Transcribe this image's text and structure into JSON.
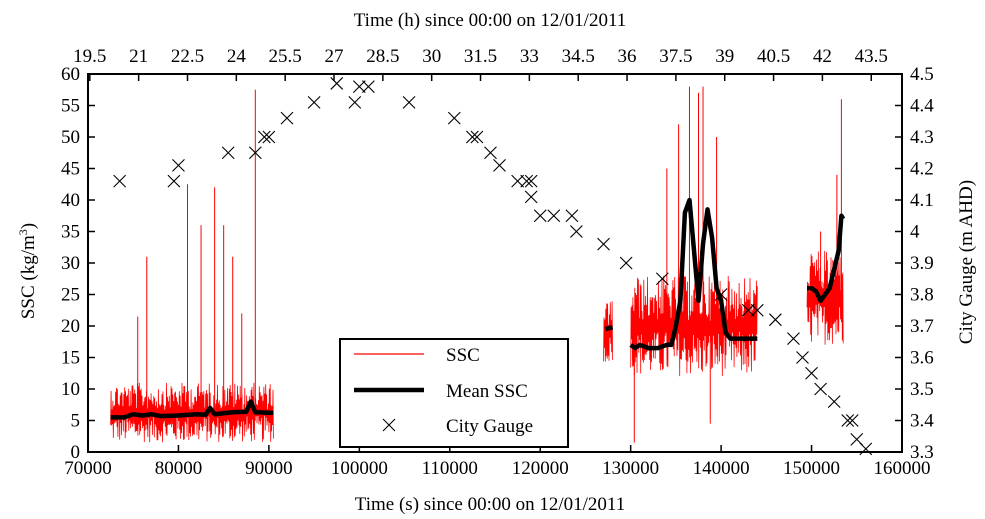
{
  "chart_data": {
    "type": "line",
    "title": "",
    "x_bottom": {
      "label": "Time (s) since 00:00 on 12/01/2011",
      "range": [
        70000,
        160000
      ],
      "ticks": [
        70000,
        80000,
        90000,
        100000,
        110000,
        120000,
        130000,
        140000,
        150000,
        160000
      ]
    },
    "x_top": {
      "label": "Time (h) since 00:00 on 12/01/2011",
      "ticks": [
        "19.5",
        "21",
        "22.5",
        "24",
        "25.5",
        "27",
        "28.5",
        "30",
        "31.5",
        "33",
        "34.5",
        "36",
        "37.5",
        "39",
        "40.5",
        "42",
        "43.5"
      ]
    },
    "y_left": {
      "label_main": "SSC (kg/m",
      "label_sup": "3",
      "label_end": ")",
      "range": [
        0,
        60
      ],
      "ticks": [
        0,
        5,
        10,
        15,
        20,
        25,
        30,
        35,
        40,
        45,
        50,
        55,
        60
      ]
    },
    "y_right": {
      "label": "City Gauge (m AHD)",
      "range": [
        3.3,
        4.5
      ],
      "ticks": [
        "3.3",
        "3.4",
        "3.5",
        "3.6",
        "3.7",
        "3.8",
        "3.9",
        "4",
        "4.1",
        "4.2",
        "4.3",
        "4.4",
        "4.5"
      ]
    },
    "grid": false,
    "legend": {
      "position": "bottom-center",
      "entries": [
        "SSC",
        "Mean SSC",
        "City Gauge"
      ]
    },
    "colors": {
      "ssc": "#ff0000",
      "mean": "#000000",
      "gauge": "#000000"
    },
    "series": [
      {
        "name": "SSC",
        "style": "thin red line (high-frequency range band)",
        "segments": [
          {
            "x": [
              72500,
              90500
            ],
            "base_min": 1.5,
            "base_max": 11,
            "spikes": [
              [
                75500,
                21.5
              ],
              [
                76500,
                31
              ],
              [
                81000,
                42.5
              ],
              [
                82500,
                36
              ],
              [
                84000,
                42
              ],
              [
                85000,
                36
              ],
              [
                86000,
                31
              ],
              [
                87000,
                22
              ],
              [
                88500,
                57.5
              ]
            ]
          },
          {
            "x": [
              127000,
              128000
            ],
            "range": [
              14,
              24
            ]
          },
          {
            "x": [
              130000,
              144000
            ],
            "base_min": 12,
            "base_max": 28,
            "spikes": [
              [
                130400,
                1.5
              ],
              [
                134000,
                45
              ],
              [
                135300,
                52
              ],
              [
                136500,
                58
              ],
              [
                137500,
                57
              ],
              [
                138000,
                58
              ],
              [
                138800,
                4.5
              ],
              [
                139500,
                50
              ]
            ]
          },
          {
            "x": [
              149500,
              153500
            ],
            "base_min": 17,
            "base_max": 32,
            "spikes": [
              [
                151000,
                35
              ],
              [
                152800,
                44
              ],
              [
                153300,
                56
              ]
            ]
          }
        ]
      },
      {
        "name": "Mean SSC",
        "style": "thick black line",
        "segments": [
          {
            "x": [
              72500,
              74000,
              75000,
              76000,
              77000,
              78000,
              80000,
              82000,
              83000,
              83500,
              84000,
              86000,
              87500,
              88000,
              88500,
              90500
            ],
            "y": [
              5.5,
              5.5,
              6,
              5.8,
              6,
              5.7,
              5.8,
              6,
              5.9,
              7,
              6,
              6.3,
              6.4,
              8,
              6.3,
              6.2
            ]
          },
          {
            "x": [
              127200,
              128000
            ],
            "y": [
              19.5,
              19.8
            ]
          },
          {
            "x": [
              130000,
              130500,
              131000,
              132000,
              133000,
              134000,
              134500,
              135000,
              135500,
              136000,
              136500,
              137000,
              137500,
              138000,
              138500,
              139000,
              139500,
              140000,
              140500,
              141000,
              141500,
              142500,
              144000
            ],
            "y": [
              17,
              16.5,
              17,
              16.5,
              16.5,
              17,
              17,
              20,
              24,
              38,
              40,
              32,
              24,
              33,
              38.5,
              34,
              26,
              24,
              19,
              18,
              18,
              18,
              18
            ]
          },
          {
            "x": [
              149500,
              150000,
              150500,
              151000,
              152000,
              152500,
              153000,
              153300,
              153500
            ],
            "y": [
              26,
              26,
              25.5,
              24,
              26,
              29,
              32,
              37.5,
              37
            ]
          }
        ]
      },
      {
        "name": "City Gauge",
        "style": "black x markers",
        "x": [
          73500,
          79500,
          80000,
          85500,
          88500,
          89500,
          90000,
          92000,
          95000,
          97500,
          99500,
          100000,
          101000,
          105500,
          110500,
          112500,
          113000,
          114500,
          115500,
          117500,
          118500,
          119000,
          119000,
          120000,
          121500,
          123500,
          124000,
          127000,
          129500,
          133500,
          140000,
          143000,
          144000,
          146000,
          148000,
          149000,
          150000,
          151000,
          152500,
          154000,
          154500,
          155000,
          156000
        ],
        "y": [
          4.16,
          4.16,
          4.21,
          4.25,
          4.25,
          4.3,
          4.3,
          4.36,
          4.41,
          4.47,
          4.41,
          4.46,
          4.46,
          4.41,
          4.36,
          4.3,
          4.3,
          4.25,
          4.21,
          4.16,
          4.16,
          4.11,
          4.16,
          4.05,
          4.05,
          4.05,
          4.0,
          3.96,
          3.9,
          3.85,
          3.8,
          3.75,
          3.75,
          3.72,
          3.66,
          3.6,
          3.55,
          3.5,
          3.46,
          3.4,
          3.4,
          3.34,
          3.31
        ]
      }
    ]
  }
}
